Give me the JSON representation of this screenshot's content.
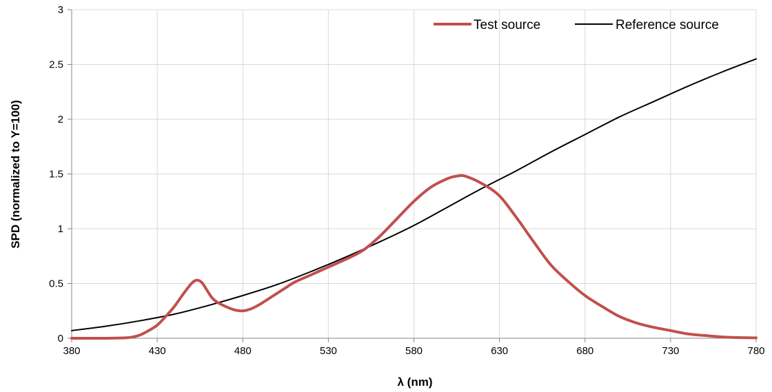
{
  "chart_data": {
    "type": "line",
    "title": "",
    "xlabel": "λ (nm)",
    "ylabel": "SPD (normalized to Y=100)",
    "xlim": [
      380,
      780
    ],
    "ylim": [
      0,
      3
    ],
    "x_ticks": [
      "380",
      "430",
      "480",
      "530",
      "580",
      "630",
      "680",
      "730",
      "780"
    ],
    "y_ticks": [
      "0",
      "0.5",
      "1",
      "1.5",
      "2",
      "2.5",
      "3"
    ],
    "grid": true,
    "legend_position": "top-right",
    "series": [
      {
        "name": "Test source",
        "color": "#C0504D",
        "x": [
          380,
          400,
          410,
          415,
          420,
          425,
          430,
          435,
          440,
          445,
          450,
          453,
          456,
          459,
          462,
          465,
          470,
          475,
          480,
          485,
          490,
          495,
          500,
          505,
          510,
          520,
          530,
          540,
          550,
          560,
          570,
          580,
          590,
          600,
          605,
          610,
          620,
          630,
          640,
          650,
          660,
          670,
          680,
          690,
          700,
          710,
          720,
          730,
          740,
          750,
          760,
          770,
          780
        ],
        "y": [
          0.0,
          0.0,
          0.003,
          0.01,
          0.03,
          0.07,
          0.12,
          0.2,
          0.29,
          0.4,
          0.5,
          0.53,
          0.51,
          0.44,
          0.37,
          0.33,
          0.29,
          0.26,
          0.25,
          0.27,
          0.31,
          0.36,
          0.41,
          0.46,
          0.51,
          0.58,
          0.65,
          0.72,
          0.8,
          0.93,
          1.09,
          1.25,
          1.38,
          1.46,
          1.48,
          1.48,
          1.41,
          1.3,
          1.1,
          0.88,
          0.67,
          0.52,
          0.39,
          0.29,
          0.2,
          0.14,
          0.1,
          0.07,
          0.04,
          0.025,
          0.012,
          0.006,
          0.004
        ]
      },
      {
        "name": "Reference source",
        "color": "#000000",
        "x": [
          380,
          400,
          420,
          440,
          460,
          480,
          500,
          520,
          540,
          560,
          580,
          600,
          620,
          640,
          660,
          680,
          700,
          720,
          740,
          760,
          780
        ],
        "y": [
          0.07,
          0.11,
          0.16,
          0.22,
          0.3,
          0.39,
          0.49,
          0.61,
          0.74,
          0.88,
          1.03,
          1.2,
          1.37,
          1.53,
          1.7,
          1.86,
          2.02,
          2.16,
          2.3,
          2.43,
          2.55
        ]
      }
    ]
  }
}
